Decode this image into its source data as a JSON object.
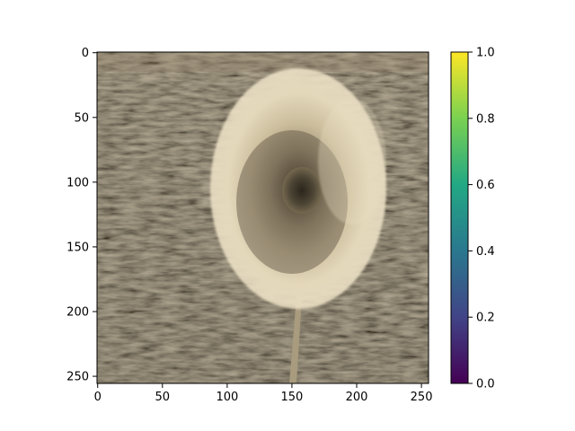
{
  "chart_data": {
    "type": "heatmap",
    "title": "",
    "xlabel": "",
    "ylabel": "",
    "image_description": "sepia-toned photograph of a dandelion seed head over grass",
    "xlim": [
      0,
      256
    ],
    "ylim": [
      256,
      0
    ],
    "x_ticks": [
      {
        "value": 0,
        "label": "0"
      },
      {
        "value": 50,
        "label": "50"
      },
      {
        "value": 100,
        "label": "100"
      },
      {
        "value": 150,
        "label": "150"
      },
      {
        "value": 200,
        "label": "200"
      },
      {
        "value": 250,
        "label": "250"
      }
    ],
    "y_ticks": [
      {
        "value": 0,
        "label": "0"
      },
      {
        "value": 50,
        "label": "50"
      },
      {
        "value": 100,
        "label": "100"
      },
      {
        "value": 150,
        "label": "150"
      },
      {
        "value": 200,
        "label": "200"
      },
      {
        "value": 250,
        "label": "250"
      }
    ],
    "colorbar": {
      "colormap": "viridis",
      "range": [
        0.0,
        1.0
      ],
      "ticks": [
        {
          "value": 0.0,
          "label": "0.0"
        },
        {
          "value": 0.2,
          "label": "0.2"
        },
        {
          "value": 0.4,
          "label": "0.4"
        },
        {
          "value": 0.6,
          "label": "0.6"
        },
        {
          "value": 0.8,
          "label": "0.8"
        },
        {
          "value": 1.0,
          "label": "1.0"
        }
      ],
      "colors": [
        "#440154",
        "#414487",
        "#2a788e",
        "#22a884",
        "#7ad151",
        "#fde725"
      ]
    }
  }
}
